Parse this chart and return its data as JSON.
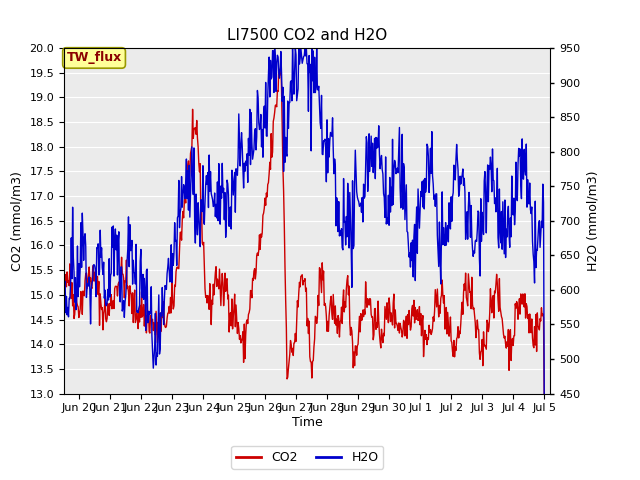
{
  "title": "LI7500 CO2 and H2O",
  "xlabel": "Time",
  "ylabel_left": "CO2 (mmol/m3)",
  "ylabel_right": "H2O (mmol/m3)",
  "ylim_left": [
    13.0,
    20.0
  ],
  "ylim_right": [
    450,
    950
  ],
  "co2_color": "#CC0000",
  "h2o_color": "#0000CC",
  "background_color": "#FFFFFF",
  "plot_bg_color": "#EBEBEB",
  "watermark_text": "TW_flux",
  "watermark_color": "#8B0000",
  "watermark_bg": "#FFFF99",
  "legend_co2": "CO2",
  "legend_h2o": "H2O",
  "line_width": 1.0,
  "title_fontsize": 11,
  "label_fontsize": 9,
  "tick_fontsize": 8,
  "n_points": 720,
  "seed": 42
}
